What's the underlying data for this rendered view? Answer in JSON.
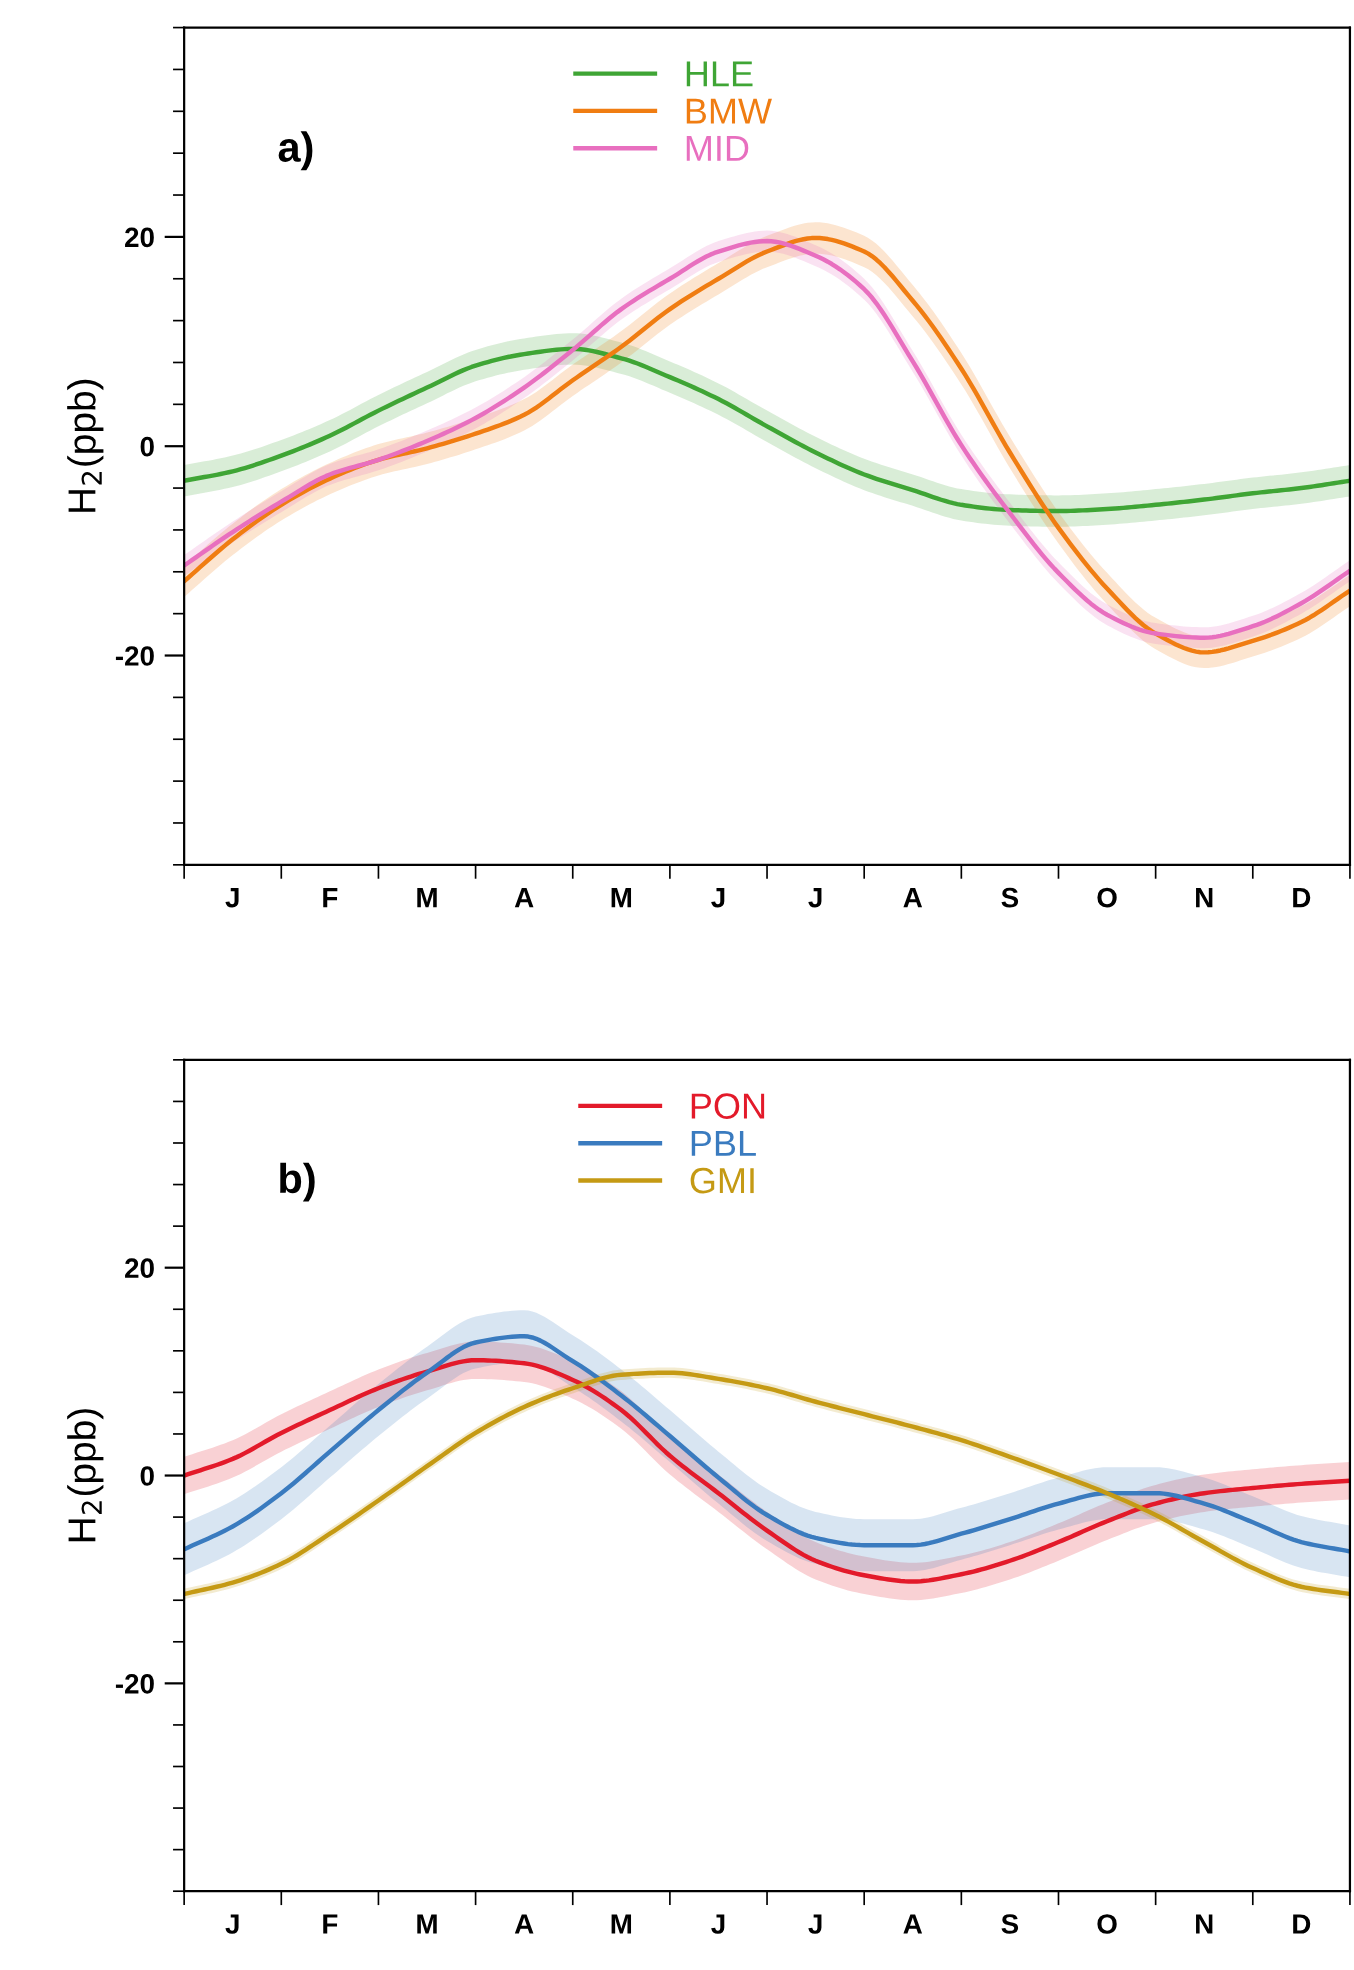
{
  "chart_data": [
    {
      "type": "line",
      "annotations": [
        "a)"
      ],
      "ylabel": "H$_{2}$(ppb)",
      "legend": "top",
      "grid": false,
      "ylim": [
        -40,
        40
      ],
      "categories": [
        null,
        "J",
        null,
        "F",
        null,
        "M",
        null,
        "A",
        null,
        "M",
        null,
        "J",
        null,
        "J",
        null,
        "A",
        null,
        "S",
        null,
        "O",
        null,
        "N",
        null,
        "D",
        null
      ],
      "yticks": [
        {
          "value": -40,
          "label": null
        },
        {
          "value": -36,
          "label": null
        },
        {
          "value": -32,
          "label": null
        },
        {
          "value": -28,
          "label": null
        },
        {
          "value": -24,
          "label": null
        },
        {
          "value": -20,
          "label": "-20"
        },
        {
          "value": -16,
          "label": null
        },
        {
          "value": -12,
          "label": null
        },
        {
          "value": -8,
          "label": null
        },
        {
          "value": -4,
          "label": null
        },
        0,
        {
          "value": 4,
          "label": null
        },
        {
          "value": 8,
          "label": null
        },
        {
          "value": 12,
          "label": null
        },
        {
          "value": 16,
          "label": null
        },
        20,
        {
          "value": 24,
          "label": null
        },
        {
          "value": 28,
          "label": null
        },
        {
          "value": 32,
          "label": null
        },
        {
          "value": 36,
          "label": null
        },
        {
          "value": 40,
          "label": null
        }
      ],
      "series": [
        {
          "name": "HLE",
          "color": "#3fa535",
          "values": [
            -3.3,
            -2.4,
            -0.9,
            1.0,
            3.4,
            5.6,
            7.7,
            8.8,
            9.3,
            8.4,
            6.6,
            4.5,
            1.9,
            -0.6,
            -2.7,
            -4.2,
            -5.6,
            -6.1,
            -6.2,
            -6.0,
            -5.6,
            -5.1,
            -4.5,
            -4.0,
            -3.3
          ],
          "lower": [
            -4.8,
            -3.9,
            -2.4,
            -0.5,
            1.9,
            4.1,
            6.2,
            7.3,
            7.8,
            6.9,
            5.1,
            3.0,
            0.4,
            -2.1,
            -4.2,
            -5.7,
            -7.1,
            -7.6,
            -7.7,
            -7.5,
            -7.1,
            -6.6,
            -6.0,
            -5.5,
            -4.8
          ],
          "upper": [
            -1.8,
            -0.9,
            0.6,
            2.5,
            4.9,
            7.1,
            9.2,
            10.3,
            10.8,
            9.9,
            8.1,
            6.0,
            3.4,
            0.9,
            -1.2,
            -2.7,
            -4.1,
            -4.6,
            -4.7,
            -4.5,
            -4.1,
            -3.6,
            -3.0,
            -2.5,
            -1.8
          ]
        },
        {
          "name": "BMW",
          "color": "#f07d12",
          "values": [
            -12.9,
            -8.9,
            -5.6,
            -3.1,
            -1.3,
            -0.2,
            1.2,
            3.0,
            6.3,
            9.5,
            13.1,
            16.0,
            18.6,
            19.9,
            18.6,
            13.9,
            7.4,
            -0.6,
            -7.8,
            -13.6,
            -17.9,
            -19.7,
            -18.6,
            -16.8,
            -13.8
          ],
          "lower": [
            -14.4,
            -10.4,
            -7.1,
            -4.6,
            -2.8,
            -1.7,
            -0.3,
            1.5,
            4.8,
            8.0,
            11.6,
            14.5,
            17.1,
            18.4,
            17.1,
            12.4,
            5.9,
            -2.1,
            -9.3,
            -15.1,
            -19.4,
            -21.2,
            -20.1,
            -18.3,
            -15.3
          ],
          "upper": [
            -11.4,
            -7.4,
            -4.1,
            -1.6,
            0.2,
            1.3,
            2.7,
            4.5,
            7.8,
            11.0,
            14.6,
            17.5,
            20.1,
            21.4,
            20.1,
            15.4,
            8.9,
            0.9,
            -6.3,
            -12.1,
            -16.4,
            -18.2,
            -17.1,
            -15.3,
            -12.3
          ]
        },
        {
          "name": "MID",
          "color": "#e86fbf",
          "values": [
            -11.4,
            -8.2,
            -5.3,
            -2.7,
            -1.3,
            0.5,
            2.7,
            5.6,
            9.2,
            13.1,
            16.0,
            18.6,
            19.6,
            18.2,
            15.0,
            8.1,
            0.1,
            -6.4,
            -12.1,
            -16.1,
            -17.9,
            -18.3,
            -17.2,
            -15.0,
            -11.9
          ],
          "lower": [
            -12.4,
            -9.2,
            -6.3,
            -3.7,
            -2.3,
            -0.5,
            1.7,
            4.6,
            8.2,
            12.1,
            15.0,
            17.6,
            18.6,
            17.2,
            14.0,
            7.1,
            -0.9,
            -7.4,
            -13.1,
            -17.1,
            -18.9,
            -19.3,
            -18.2,
            -16.0,
            -12.9
          ],
          "upper": [
            -10.4,
            -7.2,
            -4.3,
            -1.7,
            -0.3,
            1.5,
            3.7,
            6.6,
            10.2,
            14.1,
            17.0,
            19.6,
            20.6,
            19.2,
            16.0,
            9.1,
            1.1,
            -5.4,
            -11.1,
            -15.1,
            -16.9,
            -17.3,
            -16.2,
            -14.0,
            -10.9
          ]
        }
      ]
    },
    {
      "type": "line",
      "annotations": [
        "b)"
      ],
      "ylabel": "H$_{2}$(ppb)",
      "legend": "top",
      "grid": false,
      "ylim": [
        -40,
        40
      ],
      "categories": [
        null,
        "J",
        null,
        "F",
        null,
        "M",
        null,
        "A",
        null,
        "M",
        null,
        "J",
        null,
        "J",
        null,
        "A",
        null,
        "S",
        null,
        "O",
        null,
        "N",
        null,
        "D",
        null
      ],
      "yticks": [
        {
          "value": -40,
          "label": null
        },
        {
          "value": -36,
          "label": null
        },
        {
          "value": -32,
          "label": null
        },
        {
          "value": -28,
          "label": null
        },
        {
          "value": -24,
          "label": null
        },
        {
          "value": -20,
          "label": "-20"
        },
        {
          "value": -16,
          "label": null
        },
        {
          "value": -12,
          "label": null
        },
        {
          "value": -8,
          "label": null
        },
        {
          "value": -4,
          "label": null
        },
        0,
        {
          "value": 4,
          "label": null
        },
        {
          "value": 8,
          "label": null
        },
        {
          "value": 12,
          "label": null
        },
        {
          "value": 16,
          "label": null
        },
        20,
        {
          "value": 24,
          "label": null
        },
        {
          "value": 28,
          "label": null
        },
        {
          "value": 32,
          "label": null
        },
        {
          "value": 36,
          "label": null
        },
        {
          "value": 40,
          "label": null
        }
      ],
      "series": [
        {
          "name": "PON",
          "color": "#e31a2a",
          "values": [
            0,
            1.6,
            4.1,
            6.3,
            8.4,
            10.0,
            11.1,
            10.8,
            9.2,
            6.3,
            1.9,
            -1.7,
            -5.3,
            -8.2,
            -9.6,
            -10.2,
            -9.5,
            -8.2,
            -6.4,
            -4.4,
            -2.7,
            -1.7,
            -1.2,
            -0.8,
            -0.5
          ],
          "lower": [
            -1.8,
            -0.2,
            2.3,
            4.5,
            6.6,
            8.2,
            9.3,
            9.0,
            7.4,
            4.5,
            0.1,
            -3.5,
            -7.1,
            -10.0,
            -11.4,
            -12.0,
            -11.3,
            -10.0,
            -8.2,
            -6.2,
            -4.5,
            -3.5,
            -3.0,
            -2.6,
            -2.3
          ],
          "upper": [
            1.8,
            3.4,
            5.9,
            8.1,
            10.2,
            11.8,
            12.9,
            12.6,
            11.0,
            8.1,
            3.7,
            0.1,
            -3.5,
            -6.4,
            -7.8,
            -8.4,
            -7.7,
            -6.4,
            -4.6,
            -2.6,
            -0.9,
            0.1,
            0.6,
            1.0,
            1.3
          ]
        },
        {
          "name": "PBL",
          "color": "#3a7bbf",
          "values": [
            -7.1,
            -4.9,
            -1.7,
            2.3,
            6.3,
            9.9,
            12.8,
            13.4,
            11.0,
            7.7,
            3.8,
            -0.2,
            -3.8,
            -6.0,
            -6.7,
            -6.7,
            -5.6,
            -4.2,
            -2.7,
            -1.7,
            -1.7,
            -2.7,
            -4.5,
            -6.4,
            -7.3
          ],
          "lower": [
            -9.6,
            -7.4,
            -4.2,
            -0.2,
            3.8,
            7.4,
            10.3,
            10.9,
            8.5,
            5.2,
            1.3,
            -2.7,
            -6.3,
            -8.5,
            -9.2,
            -9.2,
            -8.1,
            -6.7,
            -5.2,
            -4.2,
            -4.2,
            -5.2,
            -7.0,
            -8.9,
            -9.8
          ],
          "upper": [
            -4.6,
            -2.4,
            0.8,
            4.8,
            8.8,
            12.4,
            15.3,
            15.9,
            13.5,
            10.2,
            6.3,
            2.3,
            -1.3,
            -3.5,
            -4.2,
            -4.2,
            -3.1,
            -1.7,
            -0.2,
            0.8,
            0.8,
            -0.2,
            -2.0,
            -3.9,
            -4.8
          ]
        },
        {
          "name": "GMI",
          "color": "#c59a14",
          "values": [
            -11.4,
            -10.3,
            -8.5,
            -5.6,
            -2.4,
            0.9,
            4.1,
            6.6,
            8.4,
            9.7,
            9.9,
            9.3,
            8.4,
            7.1,
            5.9,
            4.7,
            3.4,
            1.8,
            0.1,
            -1.7,
            -3.8,
            -6.4,
            -8.9,
            -10.7,
            -11.4
          ],
          "lower": [
            -11.9,
            -10.8,
            -9.0,
            -6.1,
            -2.9,
            0.4,
            3.6,
            6.1,
            7.9,
            9.2,
            9.4,
            8.8,
            7.9,
            6.6,
            5.4,
            4.2,
            2.9,
            1.3,
            -0.4,
            -2.2,
            -4.3,
            -6.9,
            -9.4,
            -11.2,
            -11.9
          ],
          "upper": [
            -10.9,
            -9.8,
            -8.0,
            -5.1,
            -1.9,
            1.4,
            4.6,
            7.1,
            8.9,
            10.2,
            10.4,
            9.8,
            8.9,
            7.6,
            6.4,
            5.2,
            3.9,
            2.3,
            0.6,
            -1.2,
            -3.3,
            -5.9,
            -8.4,
            -10.2,
            -10.9
          ]
        }
      ]
    }
  ]
}
